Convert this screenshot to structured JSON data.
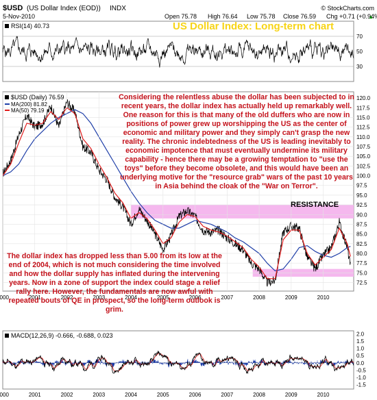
{
  "header": {
    "symbol": "$USD",
    "name": "(US Dollar Index (EOD))",
    "exchange": "INDX",
    "date": "5-Nov-2010",
    "source": "© StockCharts.com",
    "open": "Open 75.78",
    "high": "High 76.64",
    "low": "Low 75.78",
    "close": "Close 76.59",
    "chg": "Chg +0.71 (+0.94%)",
    "chg_arrow": "▲"
  },
  "chart_title": "US Dollar Index: Long-term chart",
  "annotations": {
    "main": "Considering the relentless abuse the dollar has been subjected to in recent years, the dollar index has actually held up remarkably well. One reason for this is that many of the old duffers who are now in positions of power grew up worshipping the US as the center of economic and military power and they simply can't grasp the new reality. The chronic indebtedness of the US is leading inevitably to economic impotence that must eventually undermine its military capability - hence there may be a growing temptation to \"use the toys\" before they become obsolete, and this would have been an underlying motive for the \"resource grab\" wars of the past 10 years in Asia behind the cloak of the \"War on Terror\".",
    "lower": "The dollar index has dropped less than 5.00 from its low at the end of 2004, which is not much considering the time involved and how the dollar supply has inflated during the intervening years. Now in a zone of support the index could stage a relief rally here. However, the fundamentals are now awful with repeated bouts of QE in prospect, so the long-term outlook is grim.",
    "resistance": "RESISTANCE"
  },
  "chart_data": [
    {
      "type": "line",
      "panel": "RSI",
      "legend": "RSI(14) 40.73",
      "ylim": [
        10,
        90
      ],
      "yticks": [
        30,
        50,
        70
      ],
      "reference_lines": [
        30,
        70
      ],
      "last_value": 40.73,
      "color": "#000000"
    },
    {
      "type": "line",
      "panel": "price",
      "legend": [
        "$USD (Daily) 76.59",
        "MA(200) 81.82",
        "MA(50) 79.19"
      ],
      "ylim": [
        70.3,
        121.6
      ],
      "yticks": [
        72.5,
        75.0,
        77.5,
        80.0,
        82.5,
        85.0,
        87.5,
        90.0,
        92.5,
        95.0,
        97.5,
        100.0,
        102.5,
        105.0,
        107.5,
        110.0,
        112.5,
        115.0,
        117.5,
        120.0
      ],
      "ytick_labels": [
        "72.5",
        "75.0",
        "77.5",
        "80.0",
        "82.5",
        "85.0",
        "87.5",
        "90.0",
        "92.5",
        "95.0",
        "97.5",
        "100.0",
        "102.5",
        "105.0",
        "107.5",
        "110.0",
        "112.5",
        "115.0",
        "117.5",
        "120.0"
      ],
      "x_labels": [
        "2000",
        "2001",
        "2002",
        "2003",
        "2004",
        "2005",
        "2006",
        "2007",
        "2008",
        "2009",
        "2010"
      ],
      "x": [
        2000.0,
        2000.25,
        2000.5,
        2000.75,
        2001.0,
        2001.25,
        2001.5,
        2001.75,
        2002.0,
        2002.25,
        2002.5,
        2002.75,
        2003.0,
        2003.25,
        2003.5,
        2003.75,
        2004.0,
        2004.25,
        2004.5,
        2004.75,
        2005.0,
        2005.25,
        2005.5,
        2005.75,
        2006.0,
        2006.25,
        2006.5,
        2006.75,
        2007.0,
        2007.25,
        2007.5,
        2007.75,
        2008.0,
        2008.25,
        2008.5,
        2008.75,
        2009.0,
        2009.25,
        2009.5,
        2009.75,
        2010.0,
        2010.25,
        2010.5,
        2010.75,
        2010.85
      ],
      "series": [
        {
          "name": "$USD (Daily)",
          "color": "#000000",
          "values": [
            100.5,
            104.0,
            110.5,
            115.5,
            112.5,
            113.5,
            118.0,
            112.5,
            119.0,
            116.5,
            107.5,
            106.0,
            101.5,
            99.0,
            94.5,
            92.0,
            87.5,
            91.5,
            88.5,
            85.0,
            81.0,
            84.5,
            89.5,
            91.0,
            89.5,
            86.0,
            85.5,
            86.0,
            84.0,
            82.5,
            81.0,
            77.5,
            76.0,
            72.5,
            73.0,
            85.5,
            87.0,
            86.5,
            79.0,
            76.0,
            79.5,
            81.5,
            88.0,
            81.5,
            76.59
          ]
        },
        {
          "name": "MA(200)",
          "color": "#1f3fa8",
          "values": [
            100.0,
            101.0,
            103.0,
            106.5,
            109.5,
            111.5,
            113.5,
            115.0,
            116.0,
            117.0,
            116.0,
            113.5,
            110.0,
            106.5,
            103.0,
            99.5,
            96.0,
            93.0,
            90.5,
            88.5,
            87.5,
            86.5,
            86.5,
            87.5,
            88.5,
            88.0,
            87.5,
            86.5,
            85.5,
            84.0,
            83.0,
            81.5,
            80.0,
            77.5,
            75.5,
            76.0,
            78.5,
            81.5,
            82.0,
            80.5,
            79.5,
            79.0,
            80.0,
            81.5,
            81.82
          ]
        },
        {
          "name": "MA(50)",
          "color": "#e01b1b",
          "values": [
            100.0,
            103.0,
            108.5,
            113.5,
            113.0,
            113.5,
            116.5,
            114.5,
            117.5,
            116.0,
            109.5,
            107.0,
            103.0,
            99.5,
            95.5,
            93.0,
            89.0,
            90.5,
            89.0,
            86.0,
            82.5,
            84.0,
            88.0,
            90.0,
            89.5,
            87.0,
            86.0,
            85.5,
            84.5,
            83.0,
            81.5,
            78.5,
            76.5,
            73.5,
            73.5,
            83.5,
            86.0,
            86.0,
            80.0,
            77.0,
            79.0,
            81.0,
            86.5,
            82.5,
            79.19
          ]
        }
      ],
      "bands": [
        {
          "label": "RESISTANCE",
          "range": [
            89.0,
            92.5
          ],
          "from": 2004.0,
          "color": "#f5b8ee"
        },
        {
          "label": "support",
          "range": [
            74.0,
            76.0
          ],
          "from": 2007.8,
          "color": "#f5b8ee"
        }
      ]
    },
    {
      "type": "line",
      "panel": "MACD",
      "legend": "MACD(12,26,9) -0.666, -0.688, 0.023",
      "ylim": [
        -1.8,
        2.2
      ],
      "yticks": [
        -1.5,
        -1.0,
        -0.5,
        0.0,
        0.5,
        1.0,
        1.5,
        2.0
      ],
      "ytick_labels": [
        "-1.5",
        "-1.0",
        "-0.5",
        "0.0",
        "0.5",
        "1.0",
        "1.5",
        "2.0"
      ],
      "x_labels": [
        "2000",
        "2001",
        "2002",
        "2003",
        "2004",
        "2005",
        "2006",
        "2007",
        "2008",
        "2009",
        "2010"
      ],
      "series": [
        {
          "name": "MACD",
          "color": "#000000",
          "last": -0.666
        },
        {
          "name": "Signal",
          "color": "#e01b1b",
          "last": -0.688
        },
        {
          "name": "Histogram",
          "color": "#1f3fa8",
          "last": 0.023
        }
      ]
    }
  ]
}
